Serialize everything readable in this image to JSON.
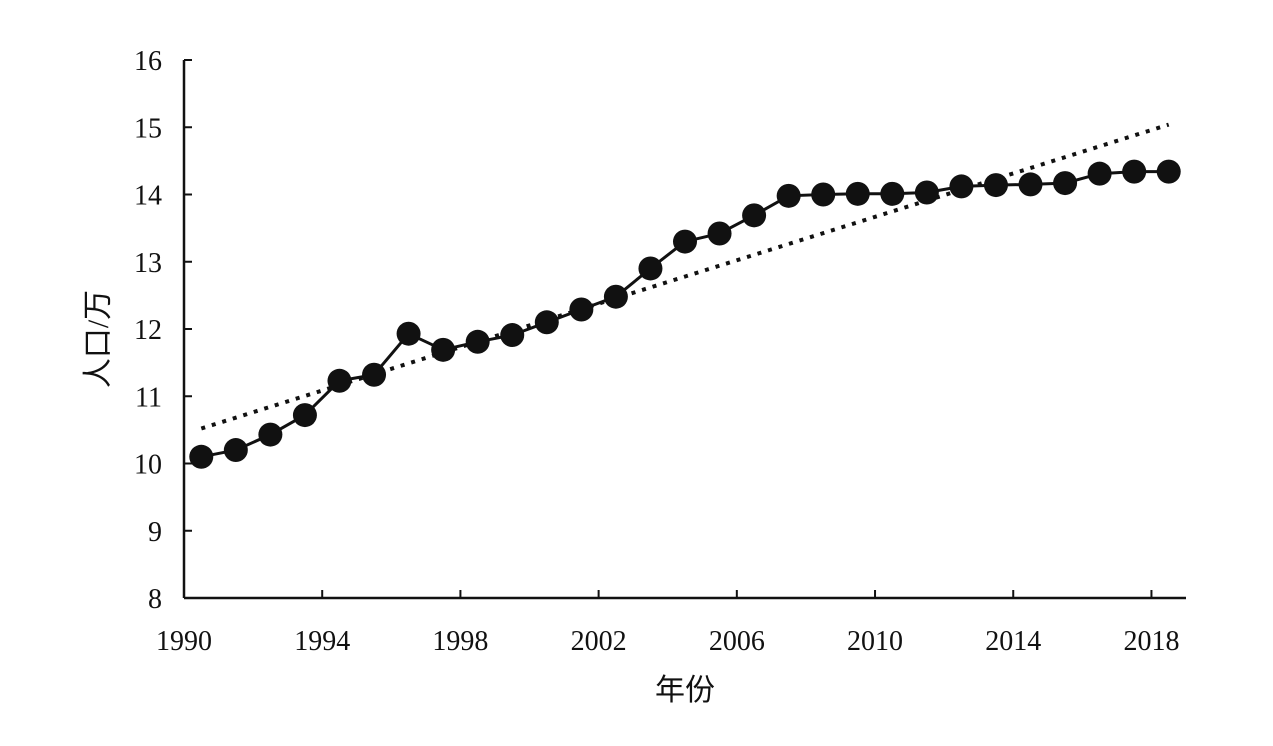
{
  "chart_data": {
    "type": "line",
    "xlabel": "年份",
    "ylabel": "人口/万",
    "xlim": [
      1990,
      2019
    ],
    "ylim": [
      8,
      16
    ],
    "x_ticks": [
      1990,
      1994,
      1998,
      2002,
      2006,
      2010,
      2014,
      2018
    ],
    "y_ticks": [
      8,
      9,
      10,
      11,
      12,
      13,
      14,
      15,
      16
    ],
    "grid": false,
    "legend": "none",
    "series": [
      {
        "style": "solid-line-with-filled-circles",
        "color": "#111111",
        "x": [
          1990.5,
          1991.5,
          1992.5,
          1993.5,
          1994.5,
          1995.5,
          1996.5,
          1997.5,
          1998.5,
          1999.5,
          2000.5,
          2001.5,
          2002.5,
          2003.5,
          2004.5,
          2005.5,
          2006.5,
          2007.5,
          2008.5,
          2009.5,
          2010.5,
          2011.5,
          2012.5,
          2013.5,
          2014.5,
          2015.5,
          2016.5,
          2017.5,
          2018.5
        ],
        "values": [
          10.1,
          10.2,
          10.43,
          10.72,
          11.23,
          11.32,
          11.93,
          11.69,
          11.81,
          11.91,
          12.1,
          12.29,
          12.48,
          12.9,
          13.3,
          13.42,
          13.69,
          13.98,
          14.0,
          14.01,
          14.01,
          14.03,
          14.12,
          14.14,
          14.15,
          14.17,
          14.31,
          14.34,
          14.34
        ]
      },
      {
        "style": "dotted-trendline",
        "color": "#111111",
        "x": [
          1990.5,
          2018.5
        ],
        "values": [
          10.52,
          15.04
        ]
      }
    ]
  }
}
